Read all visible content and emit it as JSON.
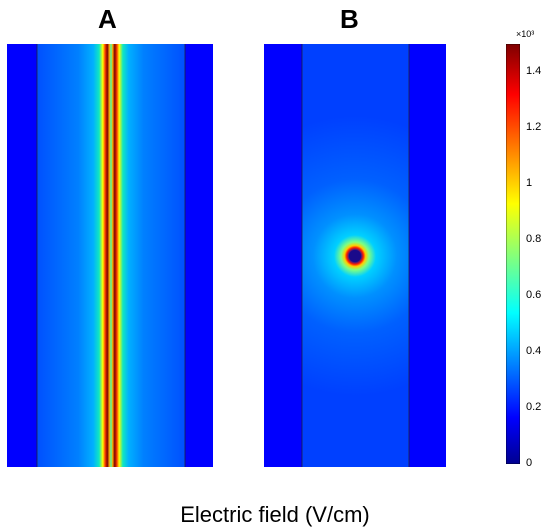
{
  "figure": {
    "panels": [
      {
        "label": "A",
        "field_pattern": "line-source"
      },
      {
        "label": "B",
        "field_pattern": "point-source"
      }
    ],
    "caption": "Electric field (V/cm)",
    "colorbar": {
      "multiplier": "×10³",
      "ticks": [
        "1.4",
        "1.2",
        "1",
        "0.8",
        "0.6",
        "0.4",
        "0.2",
        "0"
      ],
      "range": [
        0,
        1.5
      ],
      "colormap": "jet"
    },
    "colors": {
      "background_blue": "#0000ff",
      "field_base": "#0050ff",
      "peak": "#7f0000"
    }
  }
}
